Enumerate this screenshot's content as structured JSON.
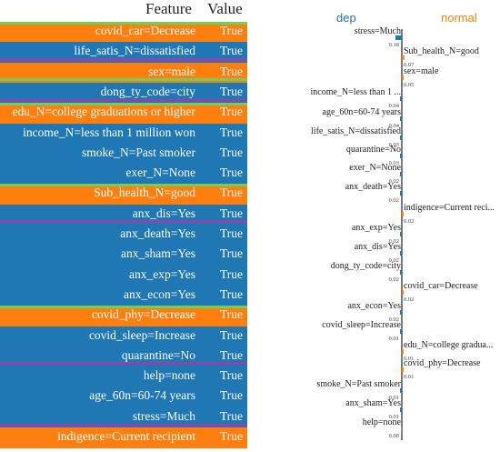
{
  "table": {
    "header_feature": "Feature",
    "header_value": "Value",
    "colors": {
      "dep": "#1f77b4",
      "normal": "#ff7f0e",
      "stripe_green": "#6fcf5a",
      "stripe_purple": "#8e44ad"
    },
    "rows": [
      {
        "feature": "covid_car=Decrease",
        "value": "True",
        "class": "normal"
      },
      {
        "feature": "life_satis_N=dissatisfied",
        "value": "True",
        "class": "dep"
      },
      {
        "feature": "sex=male",
        "value": "True",
        "class": "normal"
      },
      {
        "feature": "dong_ty_code=city",
        "value": "True",
        "class": "dep"
      },
      {
        "feature": "edu_N=college graduations or higher",
        "value": "True",
        "class": "normal"
      },
      {
        "feature": "income_N=less than 1 million won",
        "value": "True",
        "class": "dep"
      },
      {
        "feature": "smoke_N=Past smoker",
        "value": "True",
        "class": "dep"
      },
      {
        "feature": "exer_N=None",
        "value": "True",
        "class": "dep"
      },
      {
        "feature": "Sub_health_N=good",
        "value": "True",
        "class": "normal"
      },
      {
        "feature": "anx_dis=Yes",
        "value": "True",
        "class": "dep"
      },
      {
        "feature": "anx_death=Yes",
        "value": "True",
        "class": "dep"
      },
      {
        "feature": "anx_sham=Yes",
        "value": "True",
        "class": "dep"
      },
      {
        "feature": "anx_exp=Yes",
        "value": "True",
        "class": "dep"
      },
      {
        "feature": "anx_econ=Yes",
        "value": "True",
        "class": "dep"
      },
      {
        "feature": "covid_phy=Decrease",
        "value": "True",
        "class": "normal"
      },
      {
        "feature": "covid_sleep=Increase",
        "value": "True",
        "class": "dep"
      },
      {
        "feature": "quarantine=No",
        "value": "True",
        "class": "dep"
      },
      {
        "feature": "help=none",
        "value": "True",
        "class": "dep"
      },
      {
        "feature": "age_60n=60-74 years",
        "value": "True",
        "class": "dep"
      },
      {
        "feature": "stress=Much",
        "value": "True",
        "class": "dep"
      },
      {
        "feature": "indigence=Current recipient",
        "value": "True",
        "class": "normal"
      }
    ]
  },
  "chart_data": {
    "type": "bar",
    "orientation": "horizontal",
    "legend": [
      "dep",
      "normal"
    ],
    "colors": {
      "dep": "#1f77b4",
      "normal": "#ff7f0e"
    },
    "items": [
      {
        "label": "stress=Much",
        "value": 0.18,
        "class": "dep"
      },
      {
        "label": "Sub_health_N=good",
        "value": 0.07,
        "class": "normal"
      },
      {
        "label": "sex=male",
        "value": 0.05,
        "class": "normal"
      },
      {
        "label": "income_N=less than 1 ...",
        "value": 0.04,
        "class": "dep"
      },
      {
        "label": "age_60n=60-74 years",
        "value": 0.04,
        "class": "dep"
      },
      {
        "label": "life_satis_N=dissatisfied",
        "value": 0.03,
        "class": "dep"
      },
      {
        "label": "quarantine=No",
        "value": 0.03,
        "class": "dep"
      },
      {
        "label": "exer_N=None",
        "value": 0.02,
        "class": "dep"
      },
      {
        "label": "anx_death=Yes",
        "value": 0.02,
        "class": "dep"
      },
      {
        "label": "indigence=Current reci...",
        "value": 0.02,
        "class": "normal"
      },
      {
        "label": "anx_exp=Yes",
        "value": 0.02,
        "class": "dep"
      },
      {
        "label": "anx_dis=Yes",
        "value": 0.02,
        "class": "dep"
      },
      {
        "label": "dong_ty_code=city",
        "value": 0.02,
        "class": "dep"
      },
      {
        "label": "covid_car=Decrease",
        "value": 0.02,
        "class": "normal"
      },
      {
        "label": "anx_econ=Yes",
        "value": 0.02,
        "class": "dep"
      },
      {
        "label": "covid_sleep=Increase",
        "value": 0.01,
        "class": "dep"
      },
      {
        "label": "edu_N=college gradua...",
        "value": 0.01,
        "class": "normal"
      },
      {
        "label": "covid_phy=Decrease",
        "value": 0.01,
        "class": "normal"
      },
      {
        "label": "smoke_N=Past smoker",
        "value": 0.01,
        "class": "dep"
      },
      {
        "label": "anx_sham=Yes",
        "value": 0.01,
        "class": "dep"
      },
      {
        "label": "help=none",
        "value": 0.0,
        "class": "dep"
      }
    ]
  }
}
